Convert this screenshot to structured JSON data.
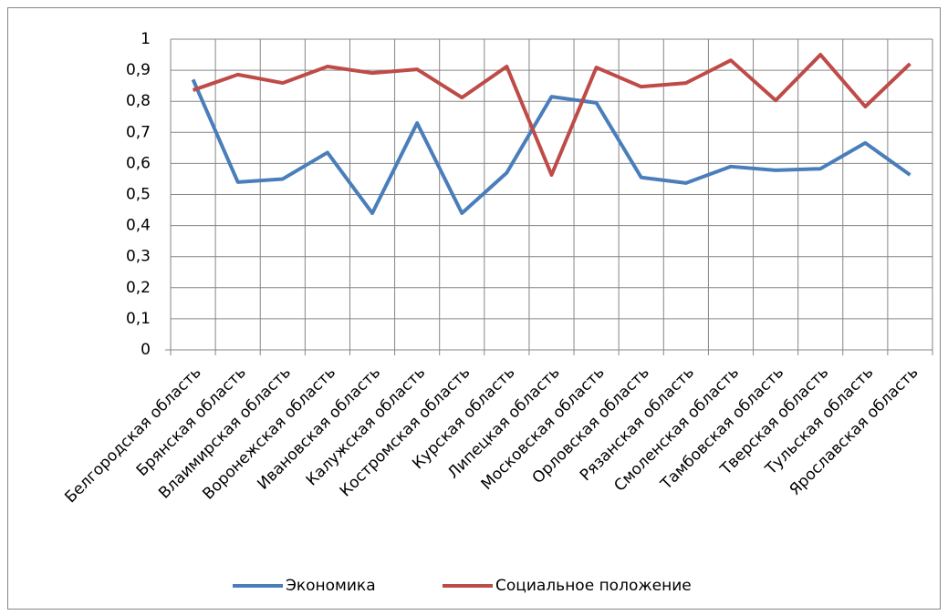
{
  "chart_data": {
    "type": "line",
    "categories": [
      "Белгородская область",
      "Брянская область",
      "Влаимирская область",
      "Воронежская область",
      "Ивановская область",
      "Калужская область",
      "Костромская область",
      "Курская область",
      "Липецкая область",
      "Московская область",
      "Орловская область",
      "Рязанская область",
      "Смоленская область",
      "Тамбовская область",
      "Тверская область",
      "Тульская область",
      "Ярославская область"
    ],
    "series": [
      {
        "name": "Экономика",
        "color": "#4a7ebb",
        "values": [
          0.87,
          0.54,
          0.55,
          0.635,
          0.44,
          0.73,
          0.44,
          0.57,
          0.815,
          0.795,
          0.555,
          0.537,
          0.59,
          0.578,
          0.583,
          0.666,
          0.563
        ]
      },
      {
        "name": "Социальное положение",
        "color": "#be4b48",
        "values": [
          0.836,
          0.886,
          0.859,
          0.912,
          0.891,
          0.903,
          0.812,
          0.912,
          0.563,
          0.909,
          0.847,
          0.859,
          0.932,
          0.803,
          0.95,
          0.783,
          0.921
        ]
      }
    ],
    "ylim": [
      0,
      1
    ],
    "yticks": [
      0,
      {
        "value": 0.1,
        "label": "0,1"
      },
      {
        "value": 0.2,
        "label": "0,2"
      },
      {
        "value": 0.3,
        "label": "0,3"
      },
      {
        "value": 0.4,
        "label": "0,4"
      },
      {
        "value": 0.5,
        "label": "0,5"
      },
      {
        "value": 0.6,
        "label": "0,6"
      },
      {
        "value": 0.7,
        "label": "0,7"
      },
      {
        "value": 0.8,
        "label": "0,8"
      },
      {
        "value": 0.9,
        "label": "0,9"
      },
      1
    ],
    "grid": true,
    "legend": "bottom"
  }
}
